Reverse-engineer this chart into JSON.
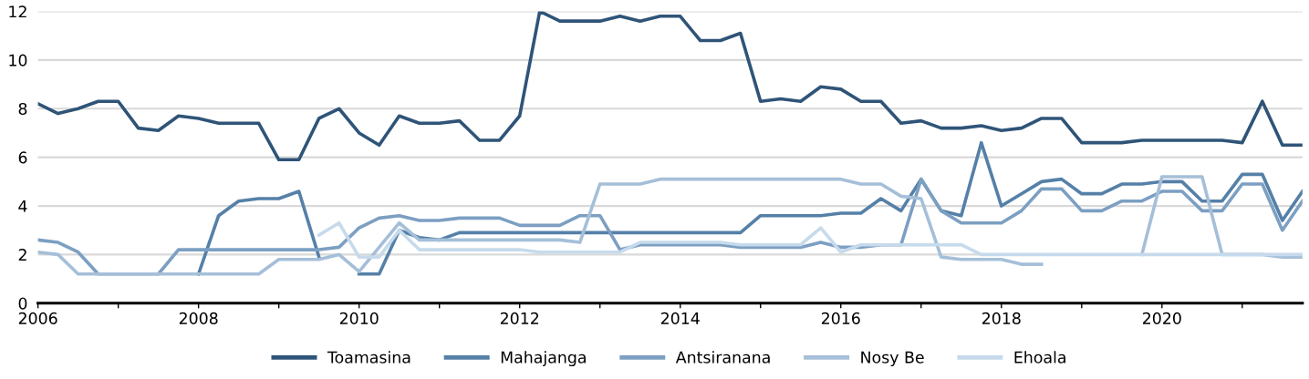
{
  "chart_data": {
    "type": "line",
    "x": [
      2006,
      2006.25,
      2006.5,
      2006.75,
      2007,
      2007.25,
      2007.5,
      2007.75,
      2008,
      2008.25,
      2008.5,
      2008.75,
      2009,
      2009.25,
      2009.5,
      2009.75,
      2010,
      2010.25,
      2010.5,
      2010.75,
      2011,
      2011.25,
      2011.5,
      2011.75,
      2012,
      2012.25,
      2012.5,
      2012.75,
      2013,
      2013.25,
      2013.5,
      2013.75,
      2014,
      2014.25,
      2014.5,
      2014.75,
      2015,
      2015.25,
      2015.5,
      2015.75,
      2016,
      2016.25,
      2016.5,
      2016.75,
      2017,
      2017.25,
      2017.5,
      2017.75,
      2018,
      2018.25,
      2018.5,
      2018.75,
      2019,
      2019.25,
      2019.5,
      2019.75,
      2020,
      2020.25,
      2020.5,
      2020.75,
      2021,
      2021.25,
      2021.5,
      2021.75
    ],
    "series": [
      {
        "name": "Toamasina",
        "color": "#2f5478",
        "values": [
          8.2,
          7.8,
          8.0,
          8.3,
          8.3,
          7.2,
          7.1,
          7.7,
          7.6,
          7.4,
          7.4,
          7.4,
          5.9,
          5.9,
          7.6,
          8.0,
          7.0,
          6.5,
          7.7,
          7.4,
          7.4,
          7.5,
          6.7,
          6.7,
          7.7,
          12.0,
          11.6,
          11.6,
          11.6,
          11.8,
          11.6,
          11.8,
          11.8,
          10.8,
          10.8,
          11.1,
          8.3,
          8.4,
          8.3,
          8.9,
          8.8,
          8.3,
          8.3,
          7.4,
          7.5,
          7.2,
          7.2,
          7.3,
          7.1,
          7.2,
          7.6,
          7.6,
          6.6,
          6.6,
          6.6,
          6.7,
          6.7,
          6.7,
          6.7,
          6.7,
          6.6,
          8.3,
          6.5,
          6.5
        ]
      },
      {
        "name": "Mahajanga",
        "color": "#5580a8",
        "values": [
          null,
          null,
          null,
          null,
          null,
          null,
          null,
          null,
          1.2,
          3.6,
          4.2,
          4.3,
          4.3,
          4.6,
          1.9,
          null,
          1.2,
          1.2,
          3.0,
          2.7,
          2.6,
          2.9,
          2.9,
          2.9,
          2.9,
          2.9,
          2.9,
          2.9,
          2.9,
          2.9,
          2.9,
          2.9,
          2.9,
          2.9,
          2.9,
          2.9,
          3.6,
          3.6,
          3.6,
          3.6,
          3.7,
          3.7,
          4.3,
          3.8,
          5.1,
          3.8,
          3.6,
          6.6,
          4.0,
          4.5,
          5.0,
          5.1,
          4.5,
          4.5,
          4.9,
          4.9,
          5.0,
          5.0,
          4.2,
          4.2,
          5.3,
          5.3,
          3.4,
          4.6
        ]
      },
      {
        "name": "Antsiranana",
        "color": "#7c9fc2",
        "values": [
          2.6,
          2.5,
          2.1,
          1.2,
          1.2,
          1.2,
          1.2,
          2.2,
          2.2,
          2.2,
          2.2,
          2.2,
          2.2,
          2.2,
          2.2,
          2.3,
          3.1,
          3.5,
          3.6,
          3.4,
          3.4,
          3.5,
          3.5,
          3.5,
          3.2,
          3.2,
          3.2,
          3.6,
          3.6,
          2.2,
          2.4,
          2.4,
          2.4,
          2.4,
          2.4,
          2.3,
          2.3,
          2.3,
          2.3,
          2.5,
          2.3,
          2.3,
          2.4,
          2.4,
          5.1,
          3.8,
          3.3,
          3.3,
          3.3,
          3.8,
          4.7,
          4.7,
          3.8,
          3.8,
          4.2,
          4.2,
          4.6,
          4.6,
          3.8,
          3.8,
          4.9,
          4.9,
          3.0,
          4.2
        ]
      },
      {
        "name": "Nosy Be",
        "color": "#a5bfd8",
        "values": [
          2.1,
          2.0,
          1.2,
          1.2,
          1.2,
          1.2,
          1.2,
          1.2,
          1.2,
          1.2,
          1.2,
          1.2,
          1.8,
          1.8,
          1.8,
          2.0,
          1.3,
          2.3,
          3.3,
          2.6,
          2.6,
          2.6,
          2.6,
          2.6,
          2.6,
          2.6,
          2.6,
          2.5,
          4.9,
          4.9,
          4.9,
          5.1,
          5.1,
          5.1,
          5.1,
          5.1,
          5.1,
          5.1,
          5.1,
          5.1,
          5.1,
          4.9,
          4.9,
          4.4,
          4.3,
          1.9,
          1.8,
          1.8,
          1.8,
          1.6,
          1.6,
          null,
          null,
          null,
          null,
          2.0,
          5.2,
          5.2,
          5.2,
          2.0,
          2.0,
          2.0,
          1.9,
          1.9
        ]
      },
      {
        "name": "Ehoala",
        "color": "#c6daec",
        "values": [
          null,
          null,
          null,
          null,
          null,
          null,
          null,
          null,
          null,
          null,
          null,
          null,
          null,
          null,
          2.8,
          3.3,
          1.9,
          1.9,
          3.0,
          2.2,
          2.2,
          2.2,
          2.2,
          2.2,
          2.2,
          2.1,
          2.1,
          2.1,
          2.1,
          2.1,
          2.5,
          2.5,
          2.5,
          2.5,
          2.5,
          2.4,
          2.4,
          2.4,
          2.4,
          3.1,
          2.1,
          2.4,
          2.4,
          2.4,
          2.4,
          2.4,
          2.4,
          2.0,
          2.0,
          2.0,
          2.0,
          2.0,
          2.0,
          2.0,
          2.0,
          2.0,
          2.0,
          2.0,
          2.0,
          2.0,
          2.0,
          2.0,
          2.0,
          2.0
        ]
      }
    ],
    "xlim": [
      2006,
      2021.75
    ],
    "xticks": [
      2006,
      {
        "value": 2007,
        "label": null
      },
      2008,
      {
        "value": 2009,
        "label": null
      },
      2010,
      {
        "value": 2011,
        "label": null
      },
      2012,
      {
        "value": 2013,
        "label": null
      },
      2014,
      {
        "value": 2015,
        "label": null
      },
      2016,
      {
        "value": 2017,
        "label": null
      },
      2018,
      {
        "value": 2019,
        "label": null
      },
      2020,
      {
        "value": 2021,
        "label": null
      }
    ],
    "ylim": [
      0,
      12
    ],
    "yticks": [
      0,
      2,
      4,
      6,
      8,
      10,
      12
    ],
    "grid": "y",
    "legend": "bottom",
    "marker": "none",
    "line_style": "solid"
  }
}
